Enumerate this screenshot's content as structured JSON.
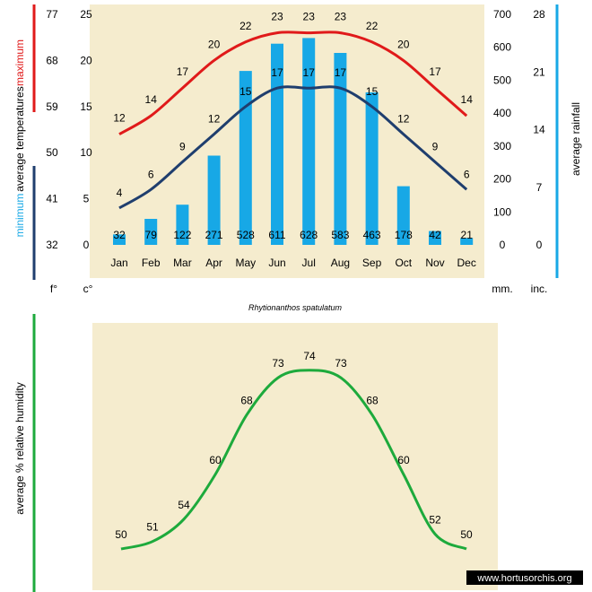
{
  "source_watermark": "www.hortusorchis.org",
  "species": "Rhytionanthos spatulatum",
  "colors": {
    "panel": "#f5ecce",
    "max_temp": "#e01a1a",
    "min_temp": "#1f3e6e",
    "rain": "#17a8e6",
    "humidity": "#1daa3c",
    "bar_red": "#e01a1a",
    "bar_navy": "#1f3e6e",
    "bar_blue": "#17a8e6",
    "bar_green": "#1daa3c"
  },
  "labels": {
    "maximum": "maximum",
    "average_temperatures": "average  temperatures",
    "minimum": "minimum",
    "average_rainfall": "average  rainfall",
    "unit_f": "f°",
    "unit_c": "c°",
    "unit_mm": "mm.",
    "unit_inc": "inc.",
    "average_humidity": "average %  relative humidity"
  },
  "chart_data": [
    {
      "type": "line+bar",
      "categories": [
        "Jan",
        "Feb",
        "Mar",
        "Apr",
        "May",
        "Jun",
        "Jul",
        "Aug",
        "Sep",
        "Oct",
        "Nov",
        "Dec"
      ],
      "series": [
        {
          "name": "maximum",
          "axis": "celsius",
          "values": [
            12,
            14,
            17,
            20,
            22,
            23,
            23,
            23,
            22,
            20,
            17,
            14
          ]
        },
        {
          "name": "minimum",
          "axis": "celsius",
          "values": [
            4,
            6,
            9,
            12,
            15,
            17,
            17,
            17,
            15,
            12,
            9,
            6
          ]
        },
        {
          "name": "average rainfall",
          "axis": "mm",
          "type": "bar",
          "values": [
            32,
            79,
            122,
            271,
            528,
            611,
            628,
            583,
            463,
            178,
            42,
            21
          ]
        }
      ],
      "axes": {
        "fahrenheit": {
          "ticks": [
            "77",
            "68",
            "59",
            "50",
            "41",
            "32"
          ]
        },
        "celsius": {
          "range": [
            0,
            25
          ],
          "ticks": [
            "25",
            "20",
            "15",
            "10",
            "5",
            "0"
          ]
        },
        "mm": {
          "range": [
            0,
            700
          ],
          "ticks": [
            "700",
            "600",
            "500",
            "400",
            "300",
            "200",
            "100",
            "0"
          ]
        },
        "inches": {
          "ticks": [
            "28",
            "21",
            "14",
            "7",
            "0"
          ]
        }
      },
      "xlabel": "Rhytionanthos spatulatum"
    },
    {
      "type": "line",
      "categories": [
        "Jan",
        "Feb",
        "Mar",
        "Apr",
        "May",
        "Jun",
        "Jul",
        "Aug",
        "Sep",
        "Oct",
        "Nov",
        "Dec"
      ],
      "series": [
        {
          "name": "average % relative humidity",
          "values": [
            50,
            51,
            54,
            60,
            68,
            73,
            74,
            73,
            68,
            60,
            52,
            50
          ]
        }
      ]
    }
  ]
}
